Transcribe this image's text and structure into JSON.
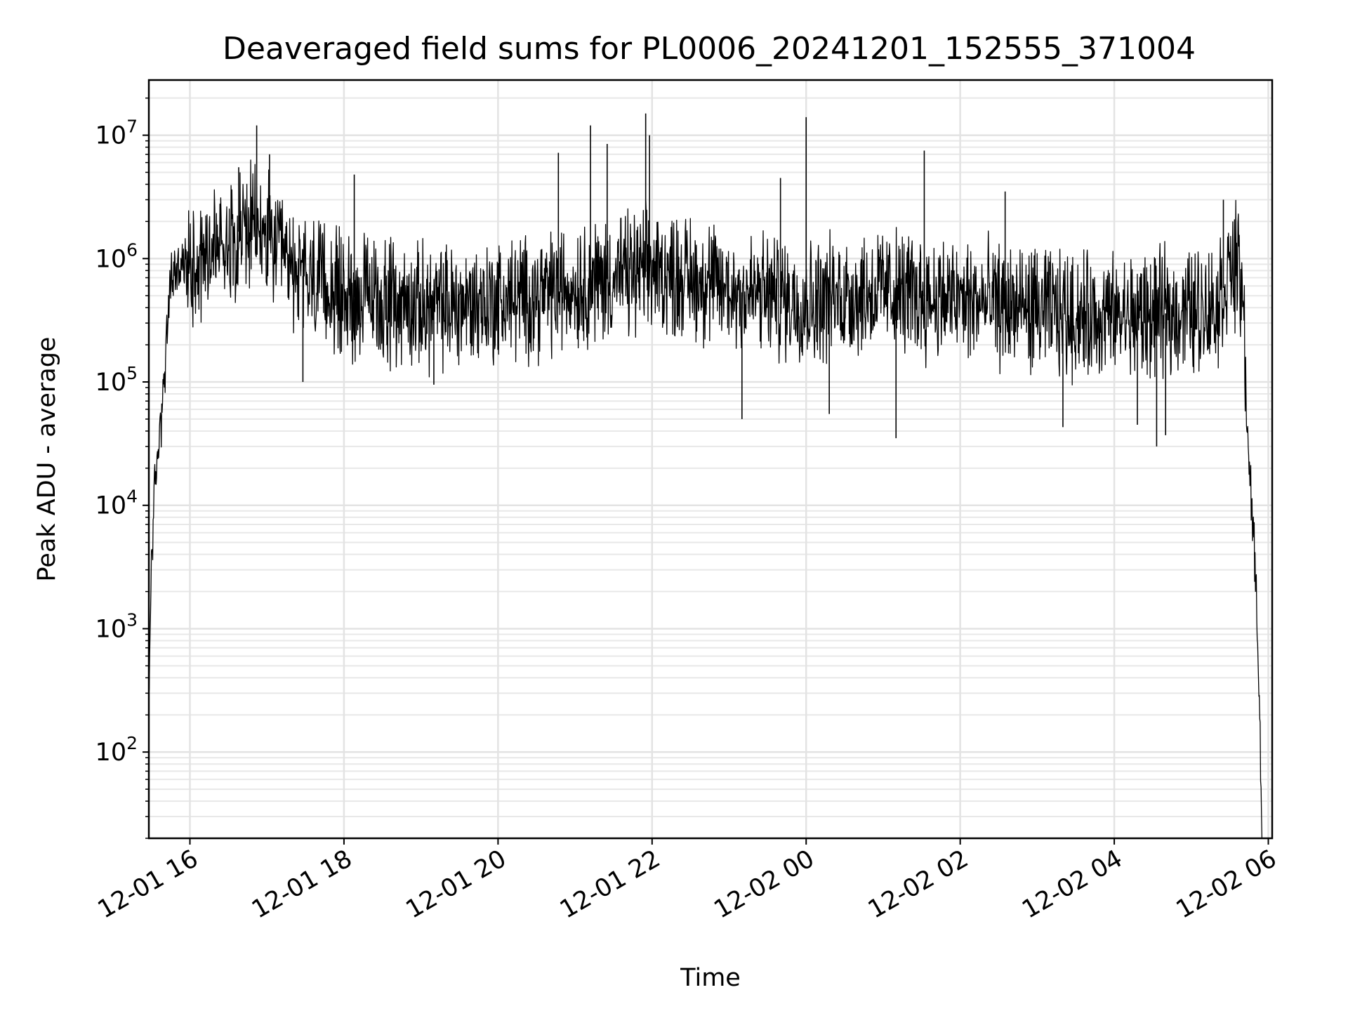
{
  "chart_data": {
    "type": "line",
    "title": "Deaveraged field sums for PL0006_20241201_152555_371004",
    "xlabel": "Time",
    "ylabel": "Peak ADU - average",
    "y_scale": "log",
    "ylim": [
      20,
      28000000
    ],
    "xlim": [
      "2024-12-01 15:28",
      "2024-12-02 06:03"
    ],
    "grid": true,
    "line_color": "#000000",
    "x_ticks": [
      {
        "value": "2024-12-01 16:00",
        "label": "12-01 16"
      },
      {
        "value": "2024-12-01 18:00",
        "label": "12-01 18"
      },
      {
        "value": "2024-12-01 20:00",
        "label": "12-01 20"
      },
      {
        "value": "2024-12-01 22:00",
        "label": "12-01 22"
      },
      {
        "value": "2024-12-02 00:00",
        "label": "12-02 00"
      },
      {
        "value": "2024-12-02 02:00",
        "label": "12-02 02"
      },
      {
        "value": "2024-12-02 04:00",
        "label": "12-02 04"
      },
      {
        "value": "2024-12-02 06:00",
        "label": "12-02 06"
      }
    ],
    "y_ticks": [
      {
        "value": 100,
        "base": "10",
        "exp": "2"
      },
      {
        "value": 1000,
        "base": "10",
        "exp": "3"
      },
      {
        "value": 10000,
        "base": "10",
        "exp": "4"
      },
      {
        "value": 100000,
        "base": "10",
        "exp": "5"
      },
      {
        "value": 1000000,
        "base": "10",
        "exp": "6"
      },
      {
        "value": 10000000,
        "base": "10",
        "exp": "7"
      }
    ],
    "series": [
      {
        "x": [
          "2024-12-01 15:28",
          "2024-12-01 15:30",
          "2024-12-01 15:33",
          "2024-12-01 15:36",
          "2024-12-01 15:40",
          "2024-12-01 15:45",
          "2024-12-01 15:50",
          "2024-12-01 16:00",
          "2024-12-01 16:15",
          "2024-12-01 16:30",
          "2024-12-01 16:45",
          "2024-12-01 17:00",
          "2024-12-01 17:15",
          "2024-12-01 17:30",
          "2024-12-01 18:00",
          "2024-12-01 18:30",
          "2024-12-01 19:00",
          "2024-12-01 19:30",
          "2024-12-01 20:00",
          "2024-12-01 20:30",
          "2024-12-01 21:00",
          "2024-12-01 21:30",
          "2024-12-01 22:00",
          "2024-12-01 22:30",
          "2024-12-01 23:00",
          "2024-12-01 23:30",
          "2024-12-02 00:00",
          "2024-12-02 00:30",
          "2024-12-02 01:00",
          "2024-12-02 01:30",
          "2024-12-02 02:00",
          "2024-12-02 02:30",
          "2024-12-02 03:00",
          "2024-12-02 03:30",
          "2024-12-02 04:00",
          "2024-12-02 04:30",
          "2024-12-02 05:00",
          "2024-12-02 05:20",
          "2024-12-02 05:30",
          "2024-12-02 05:35",
          "2024-12-02 05:40",
          "2024-12-02 05:45",
          "2024-12-02 05:50",
          "2024-12-02 05:53",
          "2024-12-02 05:55"
        ],
        "y": [
          200,
          4000,
          15000,
          35000,
          100000,
          700000,
          800000,
          900000,
          1200000,
          1500000,
          1800000,
          1500000,
          900000,
          700000,
          500000,
          450000,
          400000,
          420000,
          450000,
          500000,
          600000,
          700000,
          800000,
          700000,
          550000,
          500000,
          450000,
          500000,
          550000,
          500000,
          450000,
          420000,
          380000,
          350000,
          330000,
          350000,
          380000,
          420000,
          800000,
          900000,
          500000,
          20000,
          3000,
          300,
          20
        ]
      }
    ],
    "spikes": [
      {
        "x": "2024-12-01 16:52",
        "y": 12000000
      },
      {
        "x": "2024-12-01 17:02",
        "y": 7000000
      },
      {
        "x": "2024-12-01 16:38",
        "y": 5500000
      },
      {
        "x": "2024-12-01 18:08",
        "y": 4800000
      },
      {
        "x": "2024-12-01 20:47",
        "y": 7200000
      },
      {
        "x": "2024-12-01 21:12",
        "y": 12000000
      },
      {
        "x": "2024-12-01 21:25",
        "y": 8500000
      },
      {
        "x": "2024-12-01 21:55",
        "y": 15000000
      },
      {
        "x": "2024-12-01 21:58",
        "y": 10000000
      },
      {
        "x": "2024-12-02 00:00",
        "y": 14000000
      },
      {
        "x": "2024-12-02 01:32",
        "y": 7500000
      },
      {
        "x": "2024-12-01 23:40",
        "y": 4500000
      },
      {
        "x": "2024-12-02 05:25",
        "y": 3000000
      },
      {
        "x": "2024-12-02 02:35",
        "y": 3500000
      }
    ],
    "dips": [
      {
        "x": "2024-12-01 17:28",
        "y": 100000
      },
      {
        "x": "2024-12-01 19:10",
        "y": 95000
      },
      {
        "x": "2024-12-01 23:10",
        "y": 50000
      },
      {
        "x": "2024-12-02 00:18",
        "y": 55000
      },
      {
        "x": "2024-12-02 01:10",
        "y": 35000
      },
      {
        "x": "2024-12-02 03:20",
        "y": 43000
      },
      {
        "x": "2024-12-02 04:18",
        "y": 45000
      },
      {
        "x": "2024-12-02 04:33",
        "y": 30000
      },
      {
        "x": "2024-12-02 04:40",
        "y": 37000
      }
    ]
  }
}
